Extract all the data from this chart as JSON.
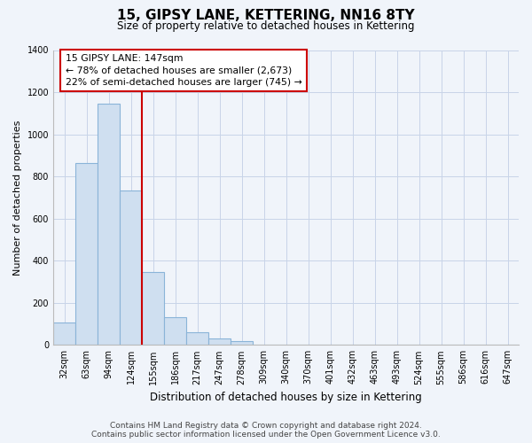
{
  "title": "15, GIPSY LANE, KETTERING, NN16 8TY",
  "subtitle": "Size of property relative to detached houses in Kettering",
  "xlabel": "Distribution of detached houses by size in Kettering",
  "ylabel": "Number of detached properties",
  "bar_labels": [
    "32sqm",
    "63sqm",
    "94sqm",
    "124sqm",
    "155sqm",
    "186sqm",
    "217sqm",
    "247sqm",
    "278sqm",
    "309sqm",
    "340sqm",
    "370sqm",
    "401sqm",
    "432sqm",
    "463sqm",
    "493sqm",
    "524sqm",
    "555sqm",
    "586sqm",
    "616sqm",
    "647sqm"
  ],
  "bar_values": [
    105,
    865,
    1145,
    735,
    345,
    130,
    62,
    30,
    17,
    0,
    0,
    0,
    0,
    0,
    0,
    0,
    0,
    0,
    0,
    0,
    0
  ],
  "bar_color": "#cfdff0",
  "bar_edge_color": "#8ab4d8",
  "vline_color": "#cc0000",
  "annotation_line1": "15 GIPSY LANE: 147sqm",
  "annotation_line2": "← 78% of detached houses are smaller (2,673)",
  "annotation_line3": "22% of semi-detached houses are larger (745) →",
  "annotation_box_color": "white",
  "annotation_box_edge_color": "#cc0000",
  "ylim": [
    0,
    1400
  ],
  "yticks": [
    0,
    200,
    400,
    600,
    800,
    1000,
    1200,
    1400
  ],
  "footer_line1": "Contains HM Land Registry data © Crown copyright and database right 2024.",
  "footer_line2": "Contains public sector information licensed under the Open Government Licence v3.0.",
  "bg_color": "#f0f4fa",
  "grid_color": "#c8d4e8",
  "title_fontsize": 11,
  "subtitle_fontsize": 8.5,
  "ylabel_fontsize": 8,
  "xlabel_fontsize": 8.5,
  "tick_fontsize": 7,
  "footer_fontsize": 6.5
}
